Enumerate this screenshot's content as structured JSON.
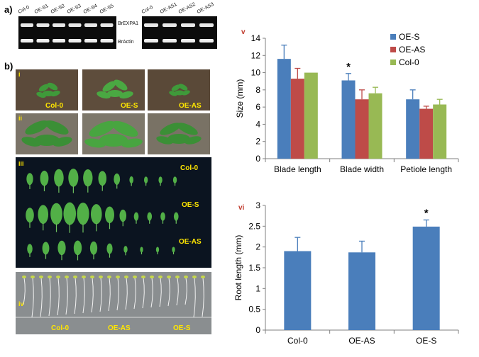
{
  "panel_a": {
    "label": "a)",
    "gel1_lanes": [
      "Col-0",
      "OE-S1",
      "OE-S2",
      "OE-S3",
      "OE-S4",
      "OE-S5"
    ],
    "gel2_lanes": [
      "Col-0",
      "OE-AS1",
      "OE-AS2",
      "OE-AS3"
    ],
    "genes": [
      "BrEXPA1",
      "BrActin"
    ]
  },
  "panel_b": {
    "label": "b)",
    "sub_i": {
      "roman": "i",
      "labels": [
        "Col-0",
        "OE-S",
        "OE-AS"
      ]
    },
    "sub_ii": {
      "roman": "ii"
    },
    "sub_iii": {
      "roman": "iii",
      "labels": [
        "Col-0",
        "OE-S",
        "OE-AS"
      ]
    },
    "sub_iv": {
      "roman": "iv",
      "labels": [
        "Col-0",
        "OE-AS",
        "OE-S"
      ]
    }
  },
  "colors": {
    "OE-S": "#4a7ebb",
    "OE-AS": "#be4b48",
    "Col-0": "#98b954",
    "tag": "#ffe600",
    "roman_v": "#c0392b"
  },
  "chart_data": [
    {
      "panel": "v",
      "type": "bar",
      "categories": [
        "Blade length",
        "Blade width",
        "Petiole length"
      ],
      "series": [
        {
          "name": "OE-S",
          "values": [
            11.6,
            9.1,
            6.9
          ],
          "errors": [
            1.6,
            0.8,
            1.1
          ]
        },
        {
          "name": "OE-AS",
          "values": [
            9.3,
            6.9,
            5.8
          ],
          "errors": [
            1.2,
            1.1,
            0.3
          ]
        },
        {
          "name": "Col-0",
          "values": [
            10.0,
            7.6,
            6.3
          ],
          "errors": [
            0.0,
            0.7,
            0.6
          ]
        }
      ],
      "ylabel": "Size (mm)",
      "ylim": [
        0,
        14
      ],
      "yticks": [
        "0",
        "2",
        "4",
        "6",
        "8",
        "10",
        "12",
        "14"
      ],
      "legend": "top-right",
      "significance": {
        "category": "Blade width",
        "series": "OE-S",
        "mark": "*"
      }
    },
    {
      "panel": "vi",
      "type": "bar",
      "categories": [
        "Col-0",
        "OE-AS",
        "OE-S"
      ],
      "values": [
        1.9,
        1.87,
        2.49
      ],
      "errors": [
        0.33,
        0.27,
        0.16
      ],
      "ylabel": "Root length (mm)",
      "ylim": [
        0,
        3
      ],
      "yticks": [
        "0",
        "0.5",
        "1",
        "1.5",
        "2",
        "2.5",
        "3"
      ],
      "significance": {
        "category": "OE-S",
        "mark": "*"
      }
    }
  ]
}
